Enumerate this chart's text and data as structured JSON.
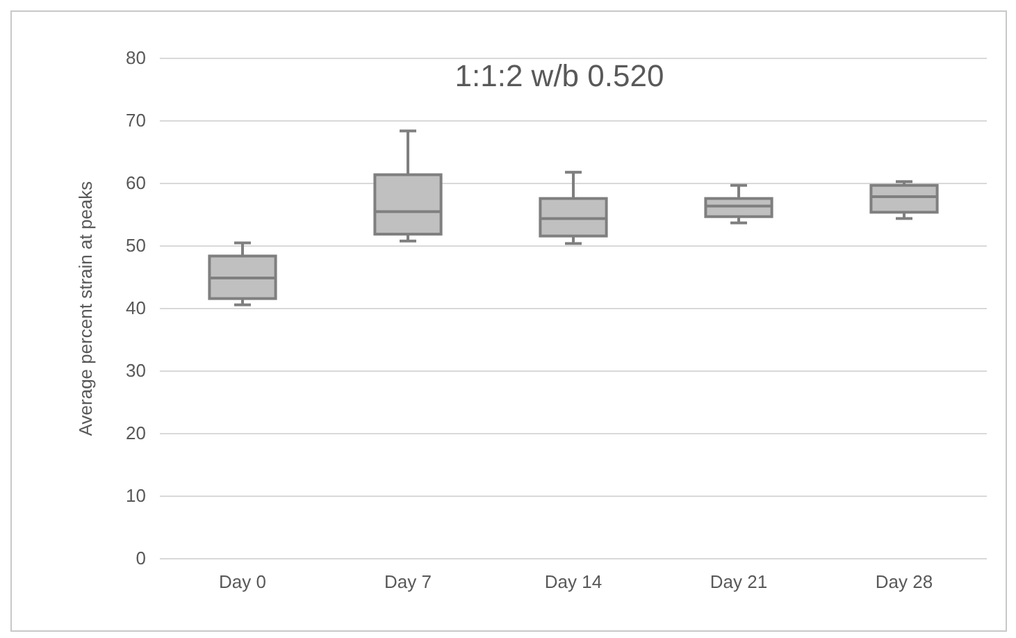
{
  "chart_data": {
    "type": "box",
    "title": "1:1:2 w/b 0.520",
    "ylabel": "Average percent strain at peaks",
    "categories": [
      "Day 0",
      "Day 7",
      "Day 14",
      "Day 21",
      "Day 28"
    ],
    "boxes": [
      {
        "low": 40.6,
        "q1": 41.6,
        "median": 44.9,
        "q3": 48.4,
        "high": 50.5
      },
      {
        "low": 50.8,
        "q1": 51.9,
        "median": 55.5,
        "q3": 61.4,
        "high": 68.4
      },
      {
        "low": 50.4,
        "q1": 51.6,
        "median": 54.4,
        "q3": 57.6,
        "high": 61.8
      },
      {
        "low": 53.7,
        "q1": 54.7,
        "median": 56.4,
        "q3": 57.6,
        "high": 59.7
      },
      {
        "low": 54.4,
        "q1": 55.4,
        "median": 57.9,
        "q3": 59.7,
        "high": 60.3
      }
    ],
    "color": "#c0c0c0",
    "ylim": [
      0,
      80
    ],
    "yticks": [
      0,
      10,
      20,
      30,
      40,
      50,
      60,
      70,
      80
    ],
    "grid": "y"
  }
}
